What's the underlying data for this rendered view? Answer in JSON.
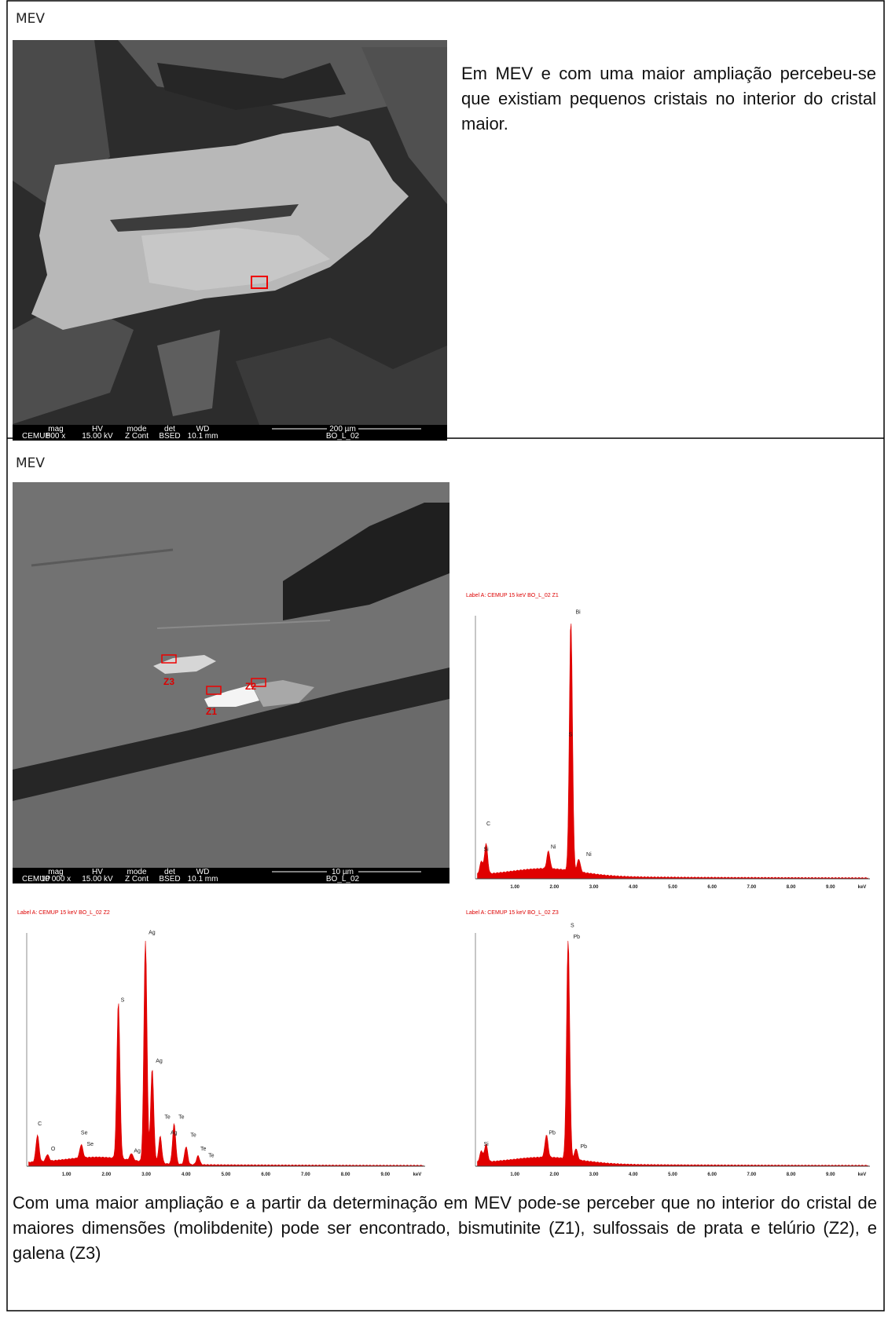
{
  "sections": [
    {
      "label": "MEV",
      "image": {
        "info": [
          "mag",
          "HV",
          "mode",
          "det",
          "WD",
          "500 x",
          "15.00 kV",
          "Z Cont",
          "BSED",
          "10.1 mm",
          "200 µm",
          "BO_L_02",
          "CEMUP"
        ]
      },
      "text": "Em MEV e com uma maior ampliação percebeu-se que existiam pequenos cristais no interior do cristal maior."
    },
    {
      "label": "MEV",
      "image": {
        "info": [
          "mag",
          "HV",
          "mode",
          "det",
          "WD",
          "10 000 x",
          "15.00 kV",
          "Z Cont",
          "BSED",
          "10.1 mm",
          "10 µm",
          "BO_L_02",
          "CEMUP"
        ],
        "zones": [
          "Z1",
          "Z2",
          "Z3"
        ]
      },
      "spectra": [
        {
          "header": "Label A: CEMUP    15 keV   BO_L_02 Z1",
          "peaks": [
            "C",
            "Si",
            "Ni",
            "S",
            "Bi",
            "Ni"
          ]
        },
        {
          "header": "Label A: CEMUP    15 keV   BO_L_02 Z2",
          "peaks": [
            "C",
            "O",
            "Se",
            "Se",
            "S",
            "Ag",
            "Ag",
            "Ag",
            "Te",
            "Te",
            "Ag",
            "Te",
            "Te",
            "Te"
          ]
        },
        {
          "header": "Label A: CEMUP    15 keV   BO_L_02 Z3",
          "peaks": [
            "Si",
            "Pb",
            "S",
            "Pb",
            "Pb"
          ]
        }
      ],
      "spectra_axis": [
        "1.00",
        "2.00",
        "3.00",
        "4.00",
        "5.00",
        "6.00",
        "7.00",
        "8.00",
        "9.00",
        "keV"
      ],
      "text": "Com uma maior ampliação e a partir da determinação em MEV pode-se perceber que no interior do cristal de maiores dimensões (molibdenite) pode ser encontrado, bismutinite (Z1), sulfossais de prata e telúrio (Z2), e galena (Z3)"
    }
  ]
}
